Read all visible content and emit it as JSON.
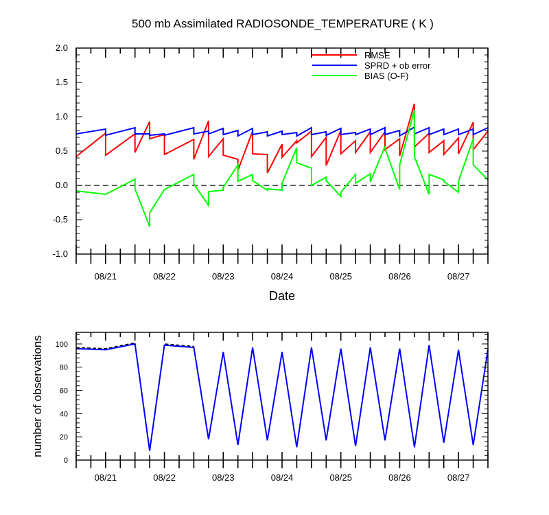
{
  "title": "500 mb Assimilated RADIOSONDE_TEMPERATURE ( K )",
  "chart_data": [
    {
      "type": "line",
      "title": "500 mb Assimilated RADIOSONDE_TEMPERATURE ( K )",
      "xlabel": "Date",
      "ylabel": "",
      "x_unit": "days (08/20 00Z to 08/27 12Z, plotted 08/20 12Z .. 08/27 12Z)",
      "xlim": [
        "08/20 12Z",
        "08/27 12Z"
      ],
      "ylim": [
        -1.0,
        2.0
      ],
      "yticks": [
        "-1.0",
        "-0.5",
        "0.0",
        "0.5",
        "1.0",
        "1.5",
        "2.0"
      ],
      "xticks": [
        "08/21",
        "08/22",
        "08/23",
        "08/24",
        "08/25",
        "08/26",
        "08/27"
      ],
      "zero_line": true,
      "legend_position": "top-right",
      "series": [
        {
          "name": "RMSE",
          "color": "#ff0000",
          "points": [
            [
              0.5,
              0.42
            ],
            [
              1.0,
              0.76
            ],
            [
              1.0,
              0.44
            ],
            [
              1.5,
              0.75
            ],
            [
              1.5,
              0.48
            ],
            [
              1.75,
              0.93
            ],
            [
              1.75,
              0.68
            ],
            [
              2.0,
              0.74
            ],
            [
              2.0,
              0.45
            ],
            [
              2.5,
              0.67
            ],
            [
              2.5,
              0.38
            ],
            [
              2.75,
              0.94
            ],
            [
              2.75,
              0.42
            ],
            [
              3.0,
              0.68
            ],
            [
              3.0,
              0.44
            ],
            [
              3.25,
              0.38
            ],
            [
              3.25,
              0.22
            ],
            [
              3.5,
              0.79
            ],
            [
              3.5,
              0.46
            ],
            [
              3.75,
              0.45
            ],
            [
              3.75,
              0.18
            ],
            [
              4.0,
              0.6
            ],
            [
              4.0,
              0.41
            ],
            [
              4.25,
              0.65
            ],
            [
              4.25,
              0.62
            ],
            [
              4.5,
              0.79
            ],
            [
              4.5,
              0.42
            ],
            [
              4.75,
              0.7
            ],
            [
              4.75,
              0.29
            ],
            [
              5.0,
              0.8
            ],
            [
              5.0,
              0.46
            ],
            [
              5.25,
              0.65
            ],
            [
              5.25,
              0.48
            ],
            [
              5.5,
              0.78
            ],
            [
              5.5,
              0.48
            ],
            [
              5.75,
              0.78
            ],
            [
              5.75,
              0.52
            ],
            [
              6.0,
              0.68
            ],
            [
              6.0,
              0.43
            ],
            [
              6.25,
              1.19
            ],
            [
              6.25,
              0.56
            ],
            [
              6.5,
              0.76
            ],
            [
              6.5,
              0.48
            ],
            [
              6.75,
              0.65
            ],
            [
              6.75,
              0.45
            ],
            [
              7.0,
              0.69
            ],
            [
              7.0,
              0.46
            ],
            [
              7.25,
              0.92
            ],
            [
              7.25,
              0.52
            ],
            [
              7.5,
              0.79
            ]
          ]
        },
        {
          "name": "SPRD + ob error",
          "color": "#0000ff",
          "points": [
            [
              0.5,
              0.75
            ],
            [
              1.0,
              0.82
            ],
            [
              1.0,
              0.73
            ],
            [
              1.5,
              0.84
            ],
            [
              1.5,
              0.75
            ],
            [
              1.75,
              0.75
            ],
            [
              1.75,
              0.73
            ],
            [
              2.0,
              0.75
            ],
            [
              2.0,
              0.73
            ],
            [
              2.5,
              0.84
            ],
            [
              2.5,
              0.75
            ],
            [
              2.75,
              0.79
            ],
            [
              2.75,
              0.75
            ],
            [
              3.0,
              0.83
            ],
            [
              3.0,
              0.74
            ],
            [
              3.25,
              0.8
            ],
            [
              3.25,
              0.72
            ],
            [
              3.5,
              0.83
            ],
            [
              3.5,
              0.74
            ],
            [
              3.75,
              0.78
            ],
            [
              3.75,
              0.72
            ],
            [
              4.0,
              0.79
            ],
            [
              4.0,
              0.74
            ],
            [
              4.25,
              0.77
            ],
            [
              4.25,
              0.72
            ],
            [
              4.5,
              0.84
            ],
            [
              4.5,
              0.74
            ],
            [
              4.75,
              0.78
            ],
            [
              4.75,
              0.73
            ],
            [
              5.0,
              0.83
            ],
            [
              5.0,
              0.74
            ],
            [
              5.25,
              0.77
            ],
            [
              5.25,
              0.74
            ],
            [
              5.5,
              0.82
            ],
            [
              5.5,
              0.74
            ],
            [
              5.75,
              0.84
            ],
            [
              5.75,
              0.74
            ],
            [
              6.0,
              0.8
            ],
            [
              6.0,
              0.72
            ],
            [
              6.25,
              0.85
            ],
            [
              6.25,
              0.75
            ],
            [
              6.5,
              0.84
            ],
            [
              6.5,
              0.74
            ],
            [
              6.75,
              0.82
            ],
            [
              6.75,
              0.74
            ],
            [
              7.0,
              0.82
            ],
            [
              7.0,
              0.74
            ],
            [
              7.25,
              0.82
            ],
            [
              7.25,
              0.74
            ],
            [
              7.5,
              0.84
            ]
          ]
        },
        {
          "name": "BIAS (O-F)",
          "color": "#00ff00",
          "points": [
            [
              0.5,
              -0.08
            ],
            [
              1.0,
              -0.13
            ],
            [
              1.0,
              -0.13
            ],
            [
              1.5,
              0.09
            ],
            [
              1.5,
              -0.05
            ],
            [
              1.75,
              -0.6
            ],
            [
              1.75,
              -0.4
            ],
            [
              2.0,
              -0.06
            ],
            [
              2.0,
              -0.06
            ],
            [
              2.5,
              0.16
            ],
            [
              2.5,
              0.02
            ],
            [
              2.75,
              -0.29
            ],
            [
              2.75,
              -0.09
            ],
            [
              3.0,
              -0.07
            ],
            [
              3.0,
              -0.03
            ],
            [
              3.25,
              0.3
            ],
            [
              3.25,
              0.06
            ],
            [
              3.5,
              0.16
            ],
            [
              3.5,
              0.07
            ],
            [
              3.75,
              -0.07
            ],
            [
              3.75,
              -0.05
            ],
            [
              4.0,
              -0.07
            ],
            [
              4.0,
              0.03
            ],
            [
              4.25,
              0.55
            ],
            [
              4.25,
              0.33
            ],
            [
              4.5,
              0.25
            ],
            [
              4.5,
              0.0
            ],
            [
              4.75,
              0.12
            ],
            [
              4.75,
              0.07
            ],
            [
              5.0,
              -0.16
            ],
            [
              5.0,
              -0.1
            ],
            [
              5.25,
              0.16
            ],
            [
              5.25,
              0.03
            ],
            [
              5.5,
              0.17
            ],
            [
              5.5,
              0.05
            ],
            [
              5.75,
              0.57
            ],
            [
              5.75,
              0.54
            ],
            [
              6.0,
              -0.06
            ],
            [
              6.0,
              0.3
            ],
            [
              6.25,
              1.1
            ],
            [
              6.25,
              0.42
            ],
            [
              6.5,
              -0.13
            ],
            [
              6.5,
              0.16
            ],
            [
              6.75,
              0.08
            ],
            [
              6.75,
              0.06
            ],
            [
              7.0,
              -0.1
            ],
            [
              7.0,
              0.06
            ],
            [
              7.25,
              0.68
            ],
            [
              7.25,
              0.3
            ],
            [
              7.5,
              0.08
            ]
          ]
        }
      ]
    },
    {
      "type": "line",
      "title": "",
      "xlabel": "",
      "ylabel": "number of observations",
      "xlim": [
        "08/20 12Z",
        "08/27 12Z"
      ],
      "ylim": [
        0,
        110
      ],
      "yticks": [
        "0",
        "20",
        "40",
        "60",
        "80",
        "100"
      ],
      "xticks": [
        "08/21",
        "08/22",
        "08/23",
        "08/24",
        "08/25",
        "08/26",
        "08/27"
      ],
      "series": [
        {
          "name": "",
          "color": "#000000",
          "dashed": true,
          "points": [
            [
              0.5,
              97
            ],
            [
              1.0,
              96
            ],
            [
              1.5,
              101
            ],
            [
              1.75,
              9
            ],
            [
              2.0,
              100
            ],
            [
              2.5,
              98
            ],
            [
              2.75,
              18
            ],
            [
              3.0,
              93
            ],
            [
              3.25,
              14
            ],
            [
              3.5,
              97
            ],
            [
              3.75,
              17
            ],
            [
              4.0,
              93
            ],
            [
              4.25,
              11
            ],
            [
              4.5,
              97
            ],
            [
              4.75,
              17
            ],
            [
              5.0,
              96
            ],
            [
              5.25,
              12
            ],
            [
              5.5,
              97
            ],
            [
              5.75,
              17
            ],
            [
              6.0,
              96
            ],
            [
              6.25,
              11
            ],
            [
              6.5,
              99
            ],
            [
              6.75,
              15
            ],
            [
              7.0,
              95
            ],
            [
              7.25,
              13
            ],
            [
              7.5,
              96
            ]
          ]
        },
        {
          "name": "",
          "color": "#0000ff",
          "dashed": false,
          "points": [
            [
              0.5,
              96
            ],
            [
              1.0,
              95
            ],
            [
              1.5,
              100
            ],
            [
              1.75,
              8
            ],
            [
              2.0,
              99
            ],
            [
              2.5,
              97
            ],
            [
              2.75,
              18
            ],
            [
              3.0,
              93
            ],
            [
              3.25,
              13
            ],
            [
              3.5,
              97
            ],
            [
              3.75,
              17
            ],
            [
              4.0,
              93
            ],
            [
              4.25,
              11
            ],
            [
              4.5,
              97
            ],
            [
              4.75,
              17
            ],
            [
              5.0,
              96
            ],
            [
              5.25,
              12
            ],
            [
              5.5,
              97
            ],
            [
              5.75,
              17
            ],
            [
              6.0,
              96
            ],
            [
              6.25,
              11
            ],
            [
              6.5,
              99
            ],
            [
              6.75,
              15
            ],
            [
              7.0,
              95
            ],
            [
              7.25,
              13
            ],
            [
              7.5,
              95
            ]
          ]
        }
      ]
    }
  ]
}
